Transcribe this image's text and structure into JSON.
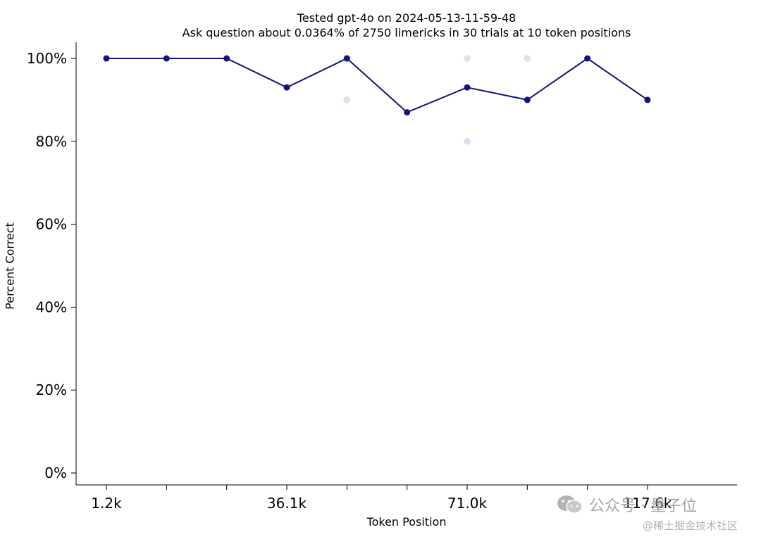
{
  "chart_data": {
    "type": "line",
    "title_line1": "Tested gpt-4o on 2024-05-13-11-59-48",
    "title_line2": "Ask question about 0.0364% of 2750 limericks in 30 trials at 10 token positions",
    "xlabel": "Token Position",
    "ylabel": "Percent Correct",
    "x_tick_labels": [
      "1.2k",
      "",
      "",
      "36.1k",
      "",
      "",
      "71.0k",
      "",
      "",
      "117.6k"
    ],
    "yticks": [
      "0%",
      "20%",
      "40%",
      "60%",
      "80%",
      "100%"
    ],
    "ylim": [
      0,
      100
    ],
    "mean_values": [
      100,
      100,
      100,
      93,
      100,
      87,
      93,
      90,
      100,
      90
    ],
    "trial_points": [
      {
        "position": 4,
        "value": 100
      },
      {
        "position": 4,
        "value": 90
      },
      {
        "position": 6,
        "value": 100
      },
      {
        "position": 6,
        "value": 80
      },
      {
        "position": 7,
        "value": 100
      },
      {
        "position": 7,
        "value": 90
      }
    ],
    "line_color": "#13137a",
    "trial_color": "#dde0ef",
    "grid": false
  },
  "watermark": {
    "text": "公众号 · 量子位",
    "site": "@稀土掘金技术社区"
  }
}
